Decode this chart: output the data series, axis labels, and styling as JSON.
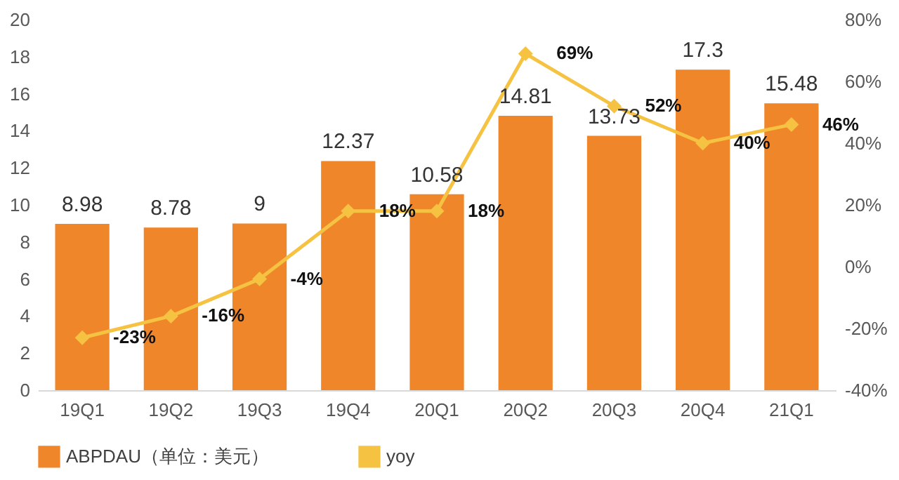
{
  "chart_data": {
    "type": "bar",
    "categories": [
      "19Q1",
      "19Q2",
      "19Q3",
      "19Q4",
      "20Q1",
      "20Q2",
      "20Q3",
      "20Q4",
      "21Q1"
    ],
    "series": [
      {
        "name": "ABPDAU（单位：美元）",
        "color": "#f0862a",
        "values": [
          8.98,
          8.78,
          9,
          12.37,
          10.58,
          14.81,
          13.73,
          17.3,
          15.48
        ]
      },
      {
        "name": "yoy",
        "type": "line",
        "axis": "y2",
        "color": "#f5c242",
        "marker": "diamond",
        "values": [
          -23,
          -16,
          -4,
          18,
          18,
          69,
          52,
          40,
          46
        ],
        "value_labels": [
          "-23%",
          "-16%",
          "-4%",
          "18%",
          "18%",
          "69%",
          "52%",
          "40%",
          "46%"
        ]
      }
    ],
    "data_labels": true,
    "ylim": [
      0,
      20
    ],
    "yticks": [
      0,
      2,
      4,
      6,
      8,
      10,
      12,
      14,
      16,
      18,
      20
    ],
    "y2lim": [
      -40,
      80
    ],
    "y2ticks": [
      {
        "value": -40,
        "label": "-40%"
      },
      {
        "value": -20,
        "label": "-20%"
      },
      {
        "value": 0,
        "label": "0%"
      },
      {
        "value": 20,
        "label": "20%"
      },
      {
        "value": 40,
        "label": "40%"
      },
      {
        "value": 60,
        "label": "60%"
      },
      {
        "value": 80,
        "label": "80%"
      }
    ],
    "grid": false,
    "legend": "bottom"
  }
}
